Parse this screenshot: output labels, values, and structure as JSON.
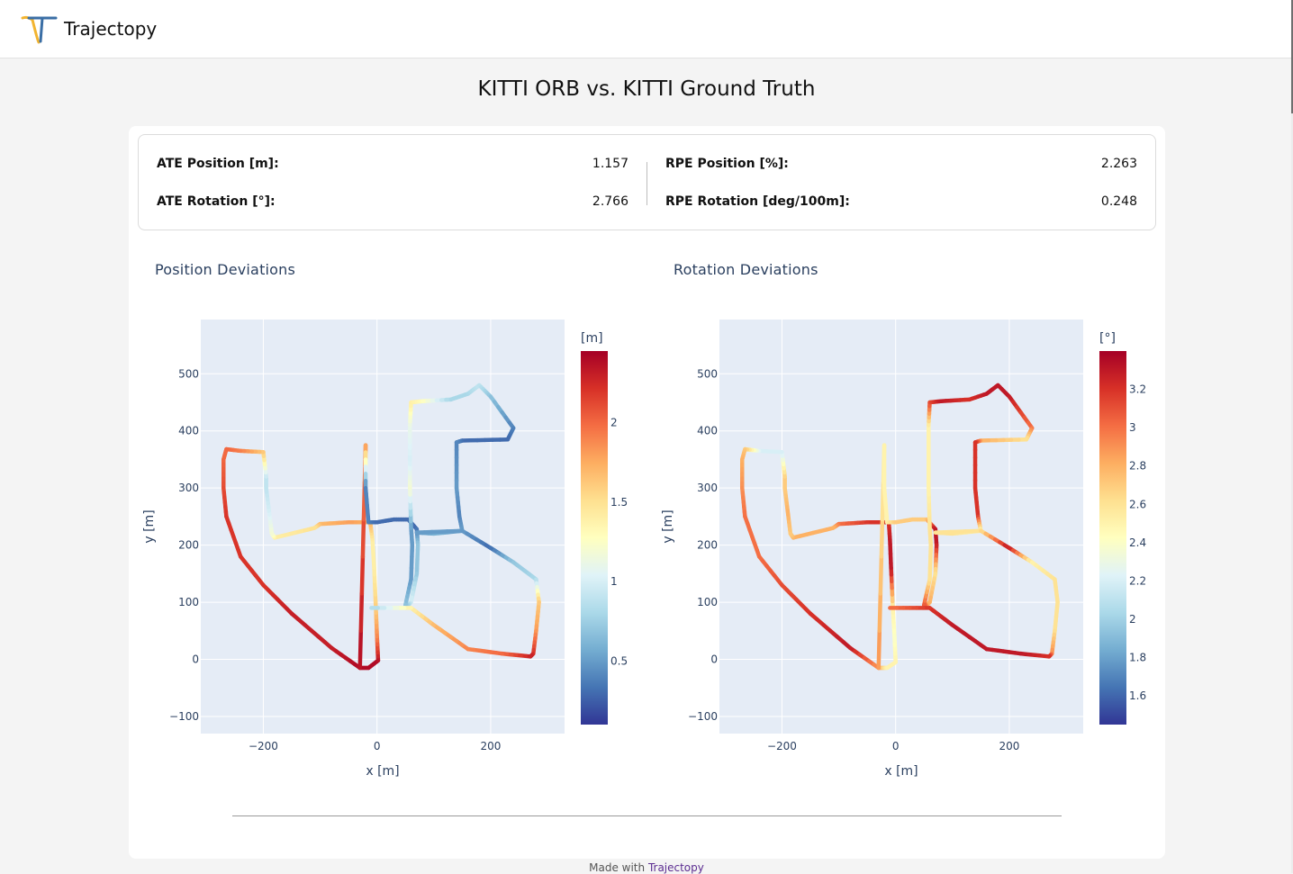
{
  "app": {
    "name": "Trajectopy"
  },
  "page": {
    "title": "KITTI ORB vs. KITTI Ground Truth"
  },
  "metrics": [
    {
      "label": "ATE Position [m]:",
      "value": "1.157"
    },
    {
      "label": "ATE Rotation [°]:",
      "value": "2.766"
    },
    {
      "label": "RPE Position [%]:",
      "value": "2.263"
    },
    {
      "label": "RPE Rotation [deg/100m]:",
      "value": "0.248"
    }
  ],
  "plots": {
    "position": {
      "title": "Position Deviations",
      "colorbar_title": "[m]"
    },
    "rotation": {
      "title": "Rotation Deviations",
      "colorbar_title": "[°]"
    }
  },
  "footer": {
    "prefix": "Made with",
    "link_text": "Trajectopy"
  },
  "colors": {
    "plot_bg": "#e5ecf6",
    "axis_text": "#2a3f5f",
    "colorscale": [
      "#313695",
      "#4575b4",
      "#74add1",
      "#abd9e9",
      "#e0f3f8",
      "#ffffbf",
      "#fee090",
      "#fdae61",
      "#f46d43",
      "#d73027",
      "#a50026"
    ]
  },
  "chart_data": [
    {
      "type": "scatter",
      "title": "Position Deviations",
      "xlabel": "x [m]",
      "ylabel": "y [m]",
      "xlim": [
        -310,
        330
      ],
      "ylim": [
        -130,
        595
      ],
      "xticks": [
        -200,
        0,
        200
      ],
      "yticks": [
        -100,
        0,
        100,
        200,
        300,
        400,
        500
      ],
      "grid": true,
      "colorbar": {
        "title": "[m]",
        "min": 0.1,
        "max": 2.45,
        "ticks": [
          0.5,
          1,
          1.5,
          2
        ]
      },
      "path": [
        [
          -30,
          -15,
          2.4
        ],
        [
          -15,
          -15,
          2.4
        ],
        [
          2,
          -2,
          2.4
        ],
        [
          0,
          40,
          1.9
        ],
        [
          -2,
          90,
          1.6
        ],
        [
          -5,
          160,
          1.4
        ],
        [
          -8,
          210,
          1.4
        ],
        [
          -12,
          240,
          1.7
        ],
        [
          -50,
          240,
          1.8
        ],
        [
          -100,
          237,
          1.7
        ],
        [
          -110,
          230,
          1.5
        ],
        [
          -180,
          213,
          1.4
        ],
        [
          -185,
          220,
          1.2
        ],
        [
          -190,
          260,
          1.0
        ],
        [
          -195,
          300,
          0.9
        ],
        [
          -195,
          320,
          0.9
        ],
        [
          -200,
          363,
          1.6
        ],
        [
          -240,
          365,
          1.9
        ],
        [
          -265,
          368,
          2.0
        ],
        [
          -270,
          350,
          2.0
        ],
        [
          -270,
          300,
          2.1
        ],
        [
          -265,
          250,
          2.2
        ],
        [
          -240,
          180,
          2.2
        ],
        [
          -200,
          130,
          2.2
        ],
        [
          -150,
          80,
          2.3
        ],
        [
          -80,
          20,
          2.3
        ],
        [
          -30,
          -15,
          2.4
        ],
        [
          -20,
          375,
          1.9
        ],
        [
          -20,
          300,
          0.4
        ],
        [
          -15,
          240,
          0.4
        ],
        [
          0,
          240,
          0.3
        ],
        [
          30,
          245,
          0.3
        ],
        [
          55,
          245,
          0.3
        ],
        [
          70,
          228,
          0.3
        ],
        [
          72,
          200,
          0.7
        ],
        [
          70,
          150,
          0.7
        ],
        [
          60,
          100,
          1.0
        ],
        [
          55,
          95,
          0.8
        ],
        [
          50,
          95,
          0.7
        ],
        [
          60,
          140,
          0.5
        ],
        [
          62,
          200,
          0.5
        ],
        [
          60,
          230,
          0.5
        ],
        [
          58,
          300,
          1.2
        ],
        [
          58,
          350,
          1.0
        ],
        [
          58,
          410,
          1.1
        ],
        [
          60,
          450,
          1.4
        ],
        [
          80,
          452,
          1.3
        ],
        [
          130,
          455,
          0.8
        ],
        [
          160,
          465,
          0.8
        ],
        [
          180,
          480,
          0.9
        ],
        [
          200,
          460,
          0.7
        ],
        [
          240,
          405,
          0.4
        ],
        [
          230,
          385,
          0.3
        ],
        [
          150,
          383,
          0.3
        ],
        [
          140,
          380,
          0.4
        ],
        [
          140,
          300,
          0.5
        ],
        [
          145,
          250,
          0.4
        ],
        [
          150,
          225,
          0.5
        ],
        [
          100,
          220,
          0.6
        ],
        [
          70,
          222,
          0.5
        ],
        [
          150,
          225,
          0.5
        ],
        [
          200,
          195,
          0.3
        ],
        [
          240,
          170,
          0.7
        ],
        [
          280,
          140,
          0.8
        ],
        [
          285,
          100,
          1.6
        ],
        [
          280,
          50,
          1.8
        ],
        [
          275,
          10,
          2.2
        ],
        [
          270,
          5,
          2.3
        ],
        [
          220,
          10,
          2.0
        ],
        [
          160,
          18,
          1.9
        ],
        [
          100,
          60,
          1.7
        ],
        [
          60,
          90,
          1.4
        ],
        [
          -10,
          90,
          0.8
        ]
      ]
    },
    {
      "type": "scatter",
      "title": "Rotation Deviations",
      "xlabel": "x [m]",
      "ylabel": "y [m]",
      "xlim": [
        -310,
        330
      ],
      "ylim": [
        -130,
        595
      ],
      "xticks": [
        -200,
        0,
        200
      ],
      "yticks": [
        -100,
        0,
        100,
        200,
        300,
        400,
        500
      ],
      "grid": true,
      "colorbar": {
        "title": "[°]",
        "min": 1.45,
        "max": 3.4,
        "ticks": [
          1.6,
          1.8,
          2,
          2.2,
          2.4,
          2.6,
          2.8,
          3,
          3.2
        ]
      },
      "path": [
        [
          -30,
          -15,
          2.9
        ],
        [
          -15,
          -15,
          2.5
        ],
        [
          0,
          -5,
          2.5
        ],
        [
          -2,
          40,
          2.4
        ],
        [
          -5,
          90,
          2.5
        ],
        [
          -8,
          160,
          3.3
        ],
        [
          -10,
          210,
          3.3
        ],
        [
          -12,
          240,
          3.2
        ],
        [
          -50,
          240,
          3.2
        ],
        [
          -100,
          237,
          3.0
        ],
        [
          -110,
          230,
          2.8
        ],
        [
          -180,
          213,
          2.8
        ],
        [
          -185,
          220,
          2.7
        ],
        [
          -190,
          260,
          2.8
        ],
        [
          -195,
          300,
          2.7
        ],
        [
          -195,
          320,
          2.7
        ],
        [
          -200,
          363,
          2.2
        ],
        [
          -240,
          365,
          2.2
        ],
        [
          -265,
          368,
          2.7
        ],
        [
          -270,
          350,
          2.8
        ],
        [
          -270,
          300,
          2.9
        ],
        [
          -265,
          250,
          3.0
        ],
        [
          -240,
          180,
          3.0
        ],
        [
          -200,
          130,
          3.1
        ],
        [
          -150,
          80,
          3.2
        ],
        [
          -80,
          20,
          3.3
        ],
        [
          -30,
          -15,
          2.9
        ],
        [
          -20,
          375,
          2.5
        ],
        [
          -20,
          300,
          2.5
        ],
        [
          -15,
          240,
          2.5
        ],
        [
          0,
          240,
          2.7
        ],
        [
          30,
          245,
          2.7
        ],
        [
          55,
          245,
          2.7
        ],
        [
          70,
          228,
          3.3
        ],
        [
          72,
          200,
          3.3
        ],
        [
          70,
          150,
          2.6
        ],
        [
          60,
          100,
          2.8
        ],
        [
          55,
          95,
          2.8
        ],
        [
          50,
          95,
          3.1
        ],
        [
          60,
          140,
          2.6
        ],
        [
          62,
          200,
          2.6
        ],
        [
          60,
          230,
          2.6
        ],
        [
          58,
          300,
          2.5
        ],
        [
          58,
          350,
          2.5
        ],
        [
          58,
          410,
          2.5
        ],
        [
          60,
          450,
          3.1
        ],
        [
          80,
          452,
          3.3
        ],
        [
          130,
          455,
          3.2
        ],
        [
          160,
          465,
          3.3
        ],
        [
          180,
          480,
          3.3
        ],
        [
          200,
          460,
          3.3
        ],
        [
          240,
          405,
          3.0
        ],
        [
          230,
          385,
          2.6
        ],
        [
          150,
          383,
          2.8
        ],
        [
          140,
          380,
          3.2
        ],
        [
          140,
          300,
          3.2
        ],
        [
          145,
          250,
          3.2
        ],
        [
          150,
          225,
          2.5
        ],
        [
          100,
          220,
          2.6
        ],
        [
          70,
          222,
          2.6
        ],
        [
          150,
          225,
          2.6
        ],
        [
          200,
          195,
          3.3
        ],
        [
          240,
          170,
          2.5
        ],
        [
          280,
          140,
          2.6
        ],
        [
          285,
          100,
          2.6
        ],
        [
          280,
          50,
          2.6
        ],
        [
          275,
          10,
          2.9
        ],
        [
          270,
          5,
          3.2
        ],
        [
          220,
          10,
          3.3
        ],
        [
          160,
          18,
          3.3
        ],
        [
          100,
          60,
          3.3
        ],
        [
          60,
          90,
          3.2
        ],
        [
          -10,
          90,
          3.0
        ]
      ]
    }
  ]
}
